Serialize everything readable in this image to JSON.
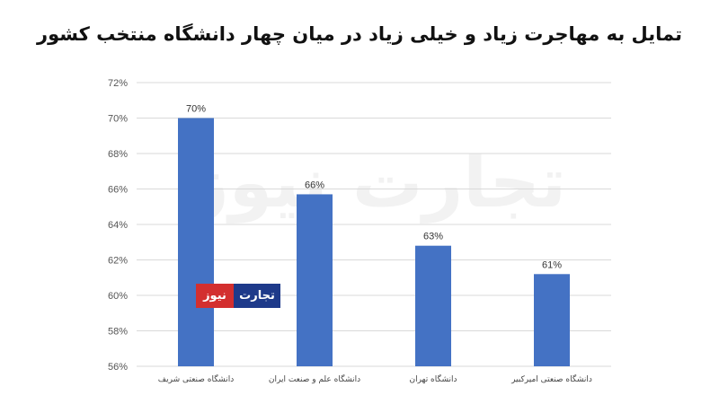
{
  "chart_data": {
    "type": "bar",
    "title": "تمایل به مهاجرت زیاد و خیلی زیاد در میان چهار دانشگاه منتخب کشور",
    "categories": [
      "دانشگاه صنعتی شریف",
      "دانشگاه علم و صنعت ایران",
      "دانشگاه تهران",
      "دانشگاه صنعتی امیرکبیر"
    ],
    "values": [
      70,
      65.7,
      62.8,
      61.2
    ],
    "value_labels": [
      "70%",
      "66%",
      "63%",
      "61%"
    ],
    "ylim": [
      56,
      72
    ],
    "yticks": [
      "56%",
      "58%",
      "60%",
      "62%",
      "64%",
      "66%",
      "68%",
      "70%",
      "72%"
    ],
    "grid": true,
    "bar_color": "#4472c4",
    "grid_color": "#d9d9d9"
  },
  "watermark": {
    "text": "تجارت نیوز",
    "color": "#f2f2f2"
  },
  "logo": {
    "part1": "نیوز",
    "part2": "تجارت",
    "part1_color": "#d32f2f",
    "part2_color": "#1e3a8a"
  }
}
